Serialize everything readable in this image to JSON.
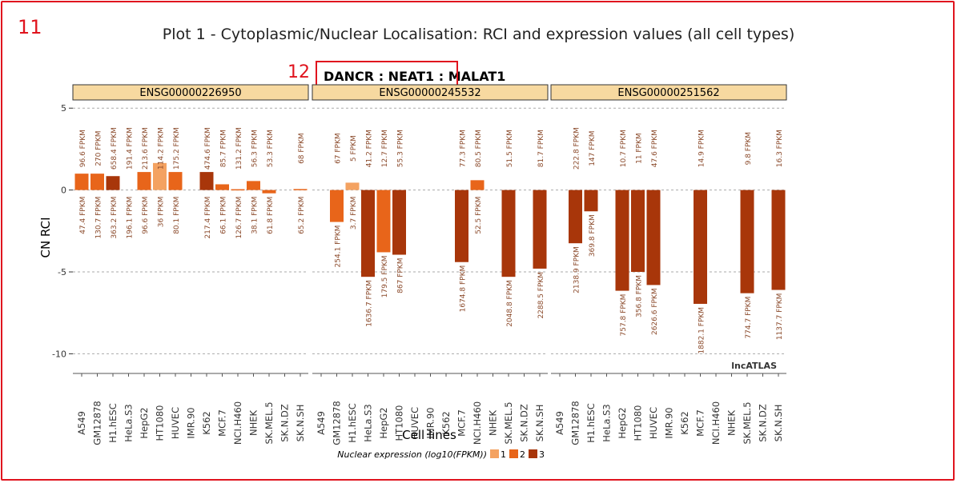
{
  "markers": {
    "outer": "11",
    "highlight": "12"
  },
  "plot_title": "Plot 1 - Cytoplasmic/Nuclear Localisation: RCI and expression values (all cell types)",
  "chart_data": {
    "type": "bar",
    "title_parts": [
      "DANCR",
      " : ",
      "NEAT1",
      " : ",
      "MALAT1"
    ],
    "highlighted_title_part": "DANCR : NEAT1",
    "ylabel": "CN RCI",
    "xlabel": "Cell lines",
    "ylim": [
      -11.2,
      5.5
    ],
    "yticks": [
      5,
      0,
      -5,
      -10
    ],
    "ytick_labels": [
      "5",
      "0",
      "-5",
      "-10"
    ],
    "grid": true,
    "watermark": "lncATLAS",
    "categories": [
      "A549",
      "GM12878",
      "H1.hESC",
      "HeLa.S3",
      "HepG2",
      "HT1080",
      "HUVEC",
      "IMR.90",
      "K562",
      "MCF.7",
      "NCI.H460",
      "NHEK",
      "SK.MEL.5",
      "SK.N.DZ",
      "SK.N.SH"
    ],
    "legend": {
      "title": "Nuclear expression (log10(FPKM))",
      "position": "bottom",
      "entries": [
        {
          "label": "1",
          "color": "#f4a261"
        },
        {
          "label": "2",
          "color": "#e8651a"
        },
        {
          "label": "3",
          "color": "#a8360a"
        }
      ]
    },
    "colors": {
      "1": "#f4a261",
      "2": "#e8651a",
      "3": "#a8360a"
    },
    "panels": [
      {
        "name": "ENSG00000226950",
        "bars": [
          {
            "cell": "A549",
            "rci": 1.0,
            "cyto": "96.6 FPKM",
            "nuc": "47.4 FPKM",
            "level": 2
          },
          {
            "cell": "GM12878",
            "rci": 1.0,
            "cyto": "270 FPKM",
            "nuc": "130.7 FPKM",
            "level": 2
          },
          {
            "cell": "H1.hESC",
            "rci": 0.85,
            "cyto": "658.4 FPKM",
            "nuc": "363.2 FPKM",
            "level": 3
          },
          {
            "cell": "HeLa.S3",
            "rci": null,
            "cyto": "191.4 FPKM",
            "nuc": "196.1 FPKM",
            "level": null
          },
          {
            "cell": "HepG2",
            "rci": 1.1,
            "cyto": "213.6 FPKM",
            "nuc": "96.6 FPKM",
            "level": 2
          },
          {
            "cell": "HT1080",
            "rci": 1.65,
            "cyto": "114.2 FPKM",
            "nuc": "36 FPKM",
            "level": 1
          },
          {
            "cell": "HUVEC",
            "rci": 1.1,
            "cyto": "175.2 FPKM",
            "nuc": "80.1 FPKM",
            "level": 2
          },
          {
            "cell": "IMR.90",
            "rci": null,
            "cyto": "",
            "nuc": "",
            "level": null
          },
          {
            "cell": "K562",
            "rci": 1.1,
            "cyto": "474.6 FPKM",
            "nuc": "217.4 FPKM",
            "level": 3
          },
          {
            "cell": "MCF.7",
            "rci": 0.35,
            "cyto": "85.7 FPKM",
            "nuc": "66.1 FPKM",
            "level": 2
          },
          {
            "cell": "NCI.H460",
            "rci": 0.05,
            "cyto": "131.2 FPKM",
            "nuc": "126.7 FPKM",
            "level": 2
          },
          {
            "cell": "NHEK",
            "rci": 0.55,
            "cyto": "56.3 FPKM",
            "nuc": "38.1 FPKM",
            "level": 2
          },
          {
            "cell": "SK.MEL.5",
            "rci": -0.2,
            "cyto": "53.3 FPKM",
            "nuc": "61.8 FPKM",
            "level": 2
          },
          {
            "cell": "SK.N.DZ",
            "rci": null,
            "cyto": "",
            "nuc": "",
            "level": null
          },
          {
            "cell": "SK.N.SH",
            "rci": 0.06,
            "cyto": "68 FPKM",
            "nuc": "65.2 FPKM",
            "level": 2
          }
        ]
      },
      {
        "name": "ENSG00000245532",
        "bars": [
          {
            "cell": "A549",
            "rci": null,
            "cyto": "",
            "nuc": "",
            "level": null
          },
          {
            "cell": "GM12878",
            "rci": -1.95,
            "cyto": "67 FPKM",
            "nuc": "254.1 FPKM",
            "level": 2
          },
          {
            "cell": "H1.hESC",
            "rci": 0.45,
            "cyto": "5 FPKM",
            "nuc": "3.7 FPKM",
            "level": 1
          },
          {
            "cell": "HeLa.S3",
            "rci": -5.3,
            "cyto": "41.2 FPKM",
            "nuc": "1636.7 FPKM",
            "level": 3
          },
          {
            "cell": "HepG2",
            "rci": -3.8,
            "cyto": "12.7 FPKM",
            "nuc": "179.5 FPKM",
            "level": 2
          },
          {
            "cell": "HT1080",
            "rci": -3.95,
            "cyto": "55.3 FPKM",
            "nuc": "867 FPKM",
            "level": 3
          },
          {
            "cell": "HUVEC",
            "rci": null,
            "cyto": "",
            "nuc": "",
            "level": null
          },
          {
            "cell": "IMR.90",
            "rci": null,
            "cyto": "",
            "nuc": "",
            "level": null
          },
          {
            "cell": "K562",
            "rci": null,
            "cyto": "",
            "nuc": "",
            "level": null
          },
          {
            "cell": "MCF.7",
            "rci": -4.4,
            "cyto": "77.3 FPKM",
            "nuc": "1674.8 FPKM",
            "level": 3
          },
          {
            "cell": "NCI.H460",
            "rci": 0.6,
            "cyto": "80.5 FPKM",
            "nuc": "52.5 FPKM",
            "level": 2
          },
          {
            "cell": "NHEK",
            "rci": null,
            "cyto": "",
            "nuc": "",
            "level": null
          },
          {
            "cell": "SK.MEL.5",
            "rci": -5.3,
            "cyto": "51.5 FPKM",
            "nuc": "2048.8 FPKM",
            "level": 3
          },
          {
            "cell": "SK.N.DZ",
            "rci": null,
            "cyto": "",
            "nuc": "",
            "level": null
          },
          {
            "cell": "SK.N.SH",
            "rci": -4.8,
            "cyto": "81.7 FPKM",
            "nuc": "2288.5 FPKM",
            "level": 3
          }
        ]
      },
      {
        "name": "ENSG00000251562",
        "bars": [
          {
            "cell": "A549",
            "rci": null,
            "cyto": "",
            "nuc": "",
            "level": null
          },
          {
            "cell": "GM12878",
            "rci": -3.25,
            "cyto": "222.8 FPKM",
            "nuc": "2138.9 FPKM",
            "level": 3
          },
          {
            "cell": "H1.hESC",
            "rci": -1.3,
            "cyto": "147 FPKM",
            "nuc": "369.8 FPKM",
            "level": 3
          },
          {
            "cell": "HeLa.S3",
            "rci": null,
            "cyto": "",
            "nuc": "",
            "level": null
          },
          {
            "cell": "HepG2",
            "rci": -6.15,
            "cyto": "10.7 FPKM",
            "nuc": "757.8 FPKM",
            "level": 3
          },
          {
            "cell": "HT1080",
            "rci": -5.0,
            "cyto": "11 FPKM",
            "nuc": "356.8 FPKM",
            "level": 3
          },
          {
            "cell": "HUVEC",
            "rci": -5.8,
            "cyto": "47.6 FPKM",
            "nuc": "2626.6 FPKM",
            "level": 3
          },
          {
            "cell": "IMR.90",
            "rci": null,
            "cyto": "",
            "nuc": "",
            "level": null
          },
          {
            "cell": "K562",
            "rci": null,
            "cyto": "",
            "nuc": "",
            "level": null
          },
          {
            "cell": "MCF.7",
            "rci": -6.95,
            "cyto": "14.9 FPKM",
            "nuc": "1882.1 FPKM",
            "level": 3
          },
          {
            "cell": "NCI.H460",
            "rci": null,
            "cyto": "",
            "nuc": "",
            "level": null
          },
          {
            "cell": "NHEK",
            "rci": null,
            "cyto": "",
            "nuc": "",
            "level": null
          },
          {
            "cell": "SK.MEL.5",
            "rci": -6.3,
            "cyto": "9.8 FPKM",
            "nuc": "774.7 FPKM",
            "level": 3
          },
          {
            "cell": "SK.N.DZ",
            "rci": null,
            "cyto": "",
            "nuc": "",
            "level": null
          },
          {
            "cell": "SK.N.SH",
            "rci": -6.1,
            "cyto": "16.3 FPKM",
            "nuc": "1137.7 FPKM",
            "level": 3
          }
        ]
      }
    ]
  }
}
